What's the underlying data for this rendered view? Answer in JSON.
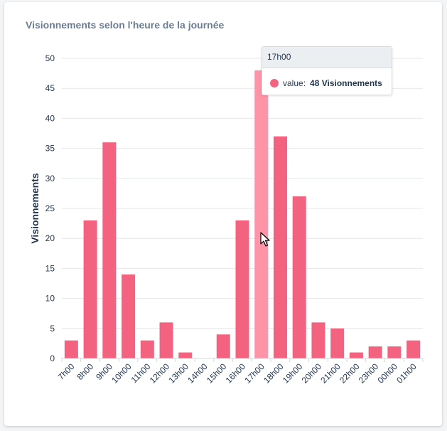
{
  "card": {
    "title": "Visionnements selon l'heure de la journée"
  },
  "chart_data": {
    "type": "bar",
    "categories": [
      "7h00",
      "8h00",
      "9h00",
      "10h00",
      "11h00",
      "12h00",
      "13h00",
      "14h00",
      "15h00",
      "16h00",
      "17h00",
      "18h00",
      "19h00",
      "20h00",
      "21h00",
      "22h00",
      "23h00",
      "00h00",
      "01h00"
    ],
    "series": [
      {
        "values": [
          3,
          23,
          36,
          14,
          3,
          6,
          1,
          0,
          4,
          23,
          48,
          37,
          27,
          6,
          5,
          1,
          2,
          2,
          3
        ]
      }
    ],
    "xlabel": "",
    "ylabel": "Visionnements",
    "ylim": [
      0,
      50
    ],
    "yticks": [
      0,
      5,
      10,
      15,
      20,
      25,
      30,
      35,
      40,
      45,
      50
    ],
    "grid": true,
    "colors": {
      "bar": "#f3627e",
      "bar_hover": "#fd94a8",
      "grid": "#e4e7eb",
      "text": "#1f3550"
    },
    "highlighted_index": 10
  },
  "tooltip": {
    "title": "17h00",
    "label": "value:",
    "value": "48 Visionnements"
  }
}
